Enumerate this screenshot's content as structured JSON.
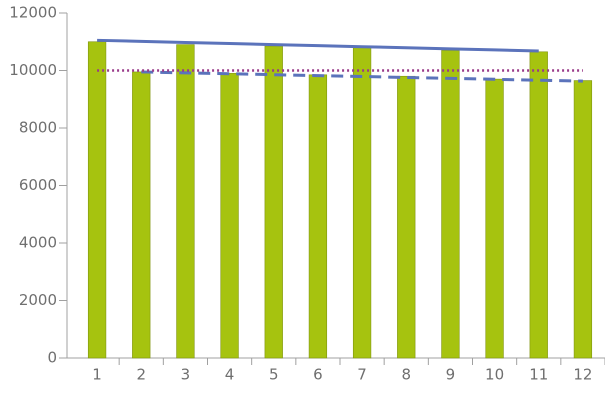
{
  "chart_data": {
    "type": "bar",
    "categories": [
      "1",
      "2",
      "3",
      "4",
      "5",
      "6",
      "7",
      "8",
      "9",
      "10",
      "11",
      "12"
    ],
    "ylim": [
      0,
      12000
    ],
    "yticks": [
      0,
      2000,
      4000,
      6000,
      8000,
      10000,
      12000
    ],
    "series": [
      {
        "type": "bar",
        "color": "#a6c30f",
        "values": [
          11000,
          9950,
          10900,
          9900,
          10850,
          9850,
          10800,
          9800,
          10700,
          9700,
          10650,
          9650
        ]
      },
      {
        "type": "line",
        "style": "solid",
        "color": "#5b73bb",
        "values": [
          11050,
          11013,
          10976,
          10939,
          10902,
          10865,
          10828,
          10791,
          10754,
          10717,
          10680,
          null
        ]
      },
      {
        "type": "line",
        "style": "dashed",
        "color": "#5b73bb",
        "values": [
          null,
          9950,
          9918,
          9886,
          9854,
          9822,
          9790,
          9758,
          9726,
          9694,
          9662,
          9630
        ]
      },
      {
        "type": "line",
        "style": "dotted",
        "color": "#9a3a8a",
        "values": [
          10000,
          10000,
          10000,
          10000,
          10000,
          10000,
          10000,
          10000,
          10000,
          10000,
          10000,
          10000
        ]
      }
    ]
  }
}
